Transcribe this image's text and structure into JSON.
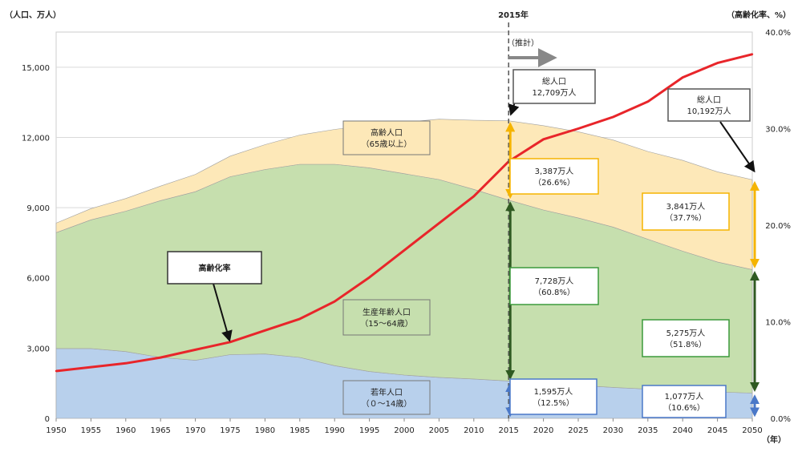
{
  "chart_data": {
    "type": "area",
    "left_axis_label": "（人口、万人）",
    "right_axis_label": "（高齢化率、%）",
    "x_unit_label": "（年）",
    "x": [
      1950,
      1955,
      1960,
      1965,
      1970,
      1975,
      1980,
      1985,
      1990,
      1995,
      2000,
      2005,
      2010,
      2015,
      2020,
      2025,
      2030,
      2035,
      2040,
      2045,
      2050
    ],
    "left_ticks": [
      "0",
      "3,000",
      "6,000",
      "9,000",
      "12,000",
      "15,000"
    ],
    "left_tick_values": [
      0,
      3000,
      6000,
      9000,
      12000,
      15000
    ],
    "right_ticks": [
      "0.0%",
      "10.0%",
      "20.0%",
      "30.0%",
      "40.0%"
    ],
    "right_tick_values": [
      0,
      10,
      20,
      30,
      40
    ],
    "ylim_left": [
      0,
      16500
    ],
    "ylim_right": [
      0,
      40
    ],
    "series": [
      {
        "name": "若年人口",
        "label_lines": [
          "若年人口",
          "（０～14歳）"
        ],
        "color": "#b8d0ec",
        "values": [
          2980,
          2980,
          2850,
          2600,
          2480,
          2720,
          2750,
          2600,
          2250,
          2000,
          1850,
          1750,
          1680,
          1595,
          1500,
          1410,
          1320,
          1250,
          1190,
          1130,
          1077
        ]
      },
      {
        "name": "生産年齢人口",
        "label_lines": [
          "生産年齢人口",
          "（15～64歳）"
        ],
        "color": "#c6dfae",
        "values": [
          4950,
          5500,
          6000,
          6700,
          7200,
          7600,
          7880,
          8250,
          8600,
          8700,
          8600,
          8450,
          8100,
          7728,
          7400,
          7150,
          6850,
          6400,
          5950,
          5550,
          5275
        ]
      },
      {
        "name": "高齢人口",
        "label_lines": [
          "高齢人口",
          "（65歳以上）"
        ],
        "color": "#fde8b8",
        "values": [
          410,
          480,
          540,
          620,
          740,
          880,
          1060,
          1250,
          1490,
          1830,
          2200,
          2580,
          2950,
          3387,
          3600,
          3680,
          3720,
          3750,
          3880,
          3850,
          3841
        ]
      }
    ],
    "line": {
      "name": "高齢化率",
      "color": "#e8252a",
      "values": [
        4.9,
        5.3,
        5.7,
        6.3,
        7.1,
        7.9,
        9.1,
        10.3,
        12.1,
        14.6,
        17.4,
        20.2,
        23.0,
        26.6,
        28.9,
        30.0,
        31.2,
        32.8,
        35.3,
        36.8,
        37.7
      ]
    },
    "divider": {
      "year": 2015,
      "label": "2015年",
      "arrow_label": "（推計）"
    },
    "annotations": [
      {
        "id": "total-2015",
        "lines": [
          "総人口",
          "12,709万人"
        ],
        "color": "#555555"
      },
      {
        "id": "total-2050",
        "lines": [
          "総人口",
          "10,192万人"
        ],
        "color": "#555555"
      },
      {
        "id": "elderly-2015",
        "lines": [
          "3,387万人",
          "（26.6%）"
        ],
        "color": "#f5b400"
      },
      {
        "id": "working-2015",
        "lines": [
          "7,728万人",
          "（60.8%）"
        ],
        "color": "#3c9a3c"
      },
      {
        "id": "young-2015",
        "lines": [
          "1,595万人",
          "（12.5%）"
        ],
        "color": "#4a78c8"
      },
      {
        "id": "elderly-2050",
        "lines": [
          "3,841万人",
          "（37.7%）"
        ],
        "color": "#f5b400"
      },
      {
        "id": "working-2050",
        "lines": [
          "5,275万人",
          "（51.8%）"
        ],
        "color": "#3c9a3c"
      },
      {
        "id": "young-2050",
        "lines": [
          "1,077万人",
          "（10.6%）"
        ],
        "color": "#4a78c8"
      },
      {
        "id": "aging-rate",
        "lines": [
          "高齢化率"
        ],
        "color": "#333333"
      }
    ],
    "grid": true
  }
}
